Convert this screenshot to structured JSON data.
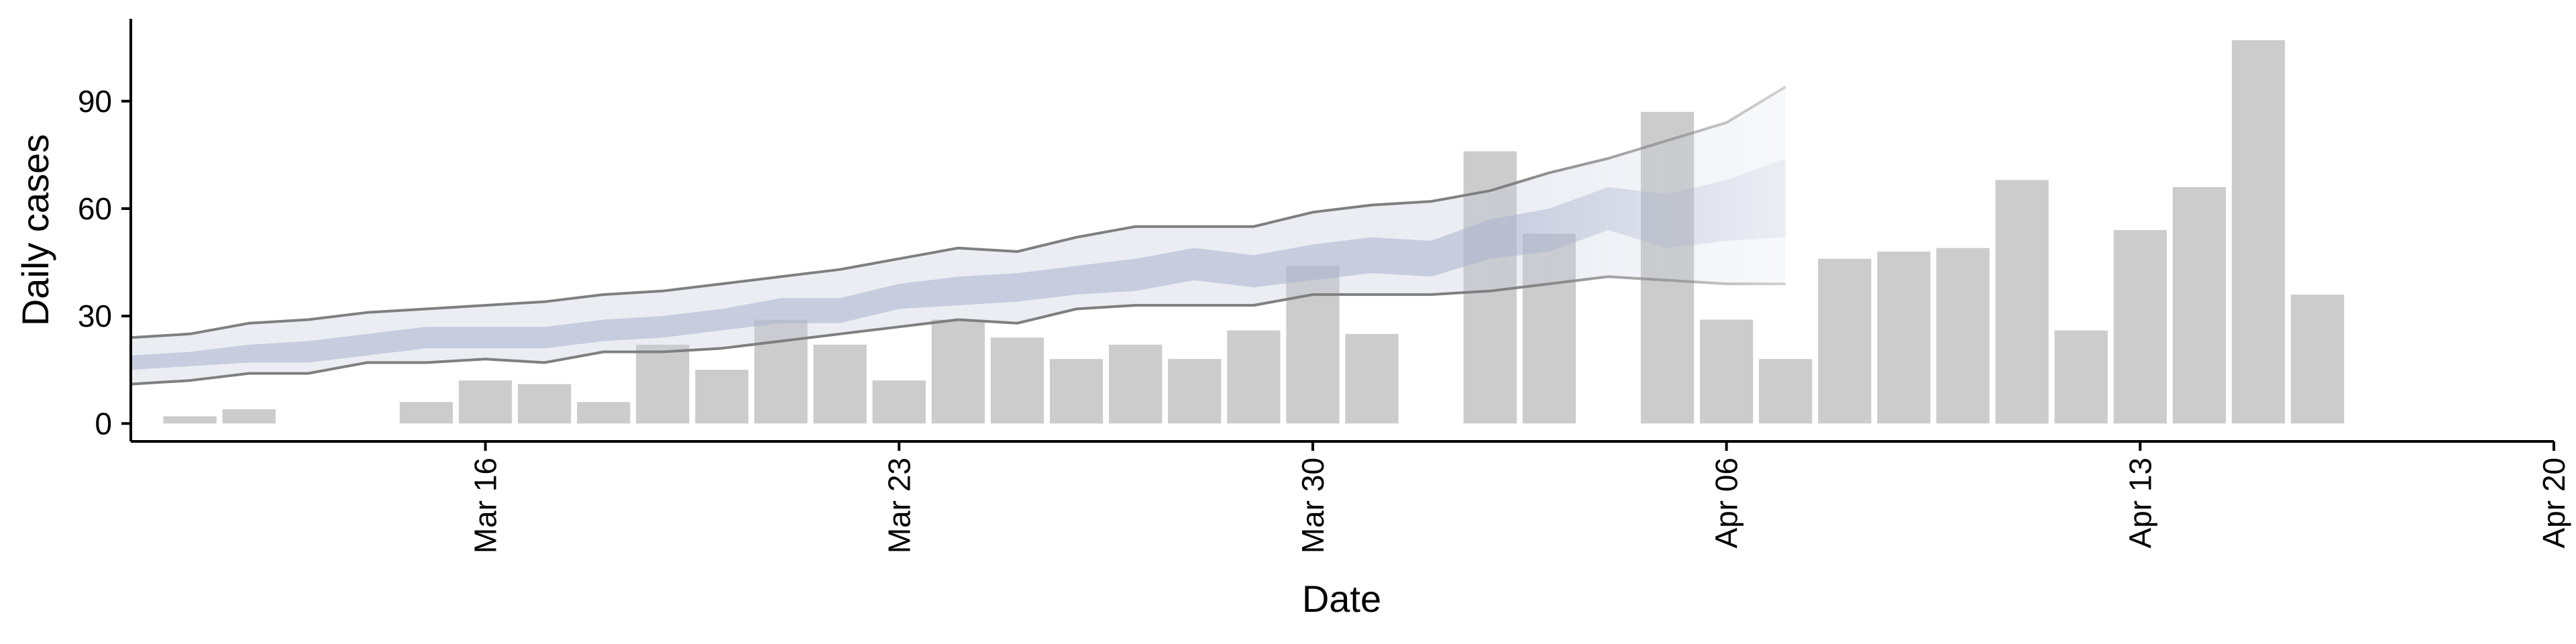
{
  "chart_data": {
    "type": "bar",
    "xlabel": "Date",
    "ylabel": "Daily cases",
    "xlim": [
      "2020-03-10",
      "2020-04-20"
    ],
    "ylim": [
      -5,
      113
    ],
    "grid": false,
    "legend": "none",
    "x_ticks": [
      {
        "date": "2020-03-16",
        "label": "Mar 16"
      },
      {
        "date": "2020-03-23",
        "label": "Mar 23"
      },
      {
        "date": "2020-03-30",
        "label": "Mar 30"
      },
      {
        "date": "2020-04-06",
        "label": "Apr 06"
      },
      {
        "date": "2020-04-13",
        "label": "Apr 13"
      },
      {
        "date": "2020-04-20",
        "label": "Apr 20"
      }
    ],
    "y_ticks": [
      {
        "value": 0,
        "label": "0"
      },
      {
        "value": 30,
        "label": "30"
      },
      {
        "value": 60,
        "label": "60"
      },
      {
        "value": 90,
        "label": "90"
      }
    ],
    "bars": {
      "color": "#cccccc",
      "data": [
        {
          "date": "2020-03-11",
          "value": 2
        },
        {
          "date": "2020-03-12",
          "value": 4
        },
        {
          "date": "2020-03-15",
          "value": 6
        },
        {
          "date": "2020-03-16",
          "value": 12
        },
        {
          "date": "2020-03-17",
          "value": 11
        },
        {
          "date": "2020-03-18",
          "value": 6
        },
        {
          "date": "2020-03-19",
          "value": 22
        },
        {
          "date": "2020-03-20",
          "value": 15
        },
        {
          "date": "2020-03-21",
          "value": 29
        },
        {
          "date": "2020-03-22",
          "value": 22
        },
        {
          "date": "2020-03-23",
          "value": 12
        },
        {
          "date": "2020-03-24",
          "value": 29
        },
        {
          "date": "2020-03-25",
          "value": 24
        },
        {
          "date": "2020-03-26",
          "value": 18
        },
        {
          "date": "2020-03-27",
          "value": 22
        },
        {
          "date": "2020-03-28",
          "value": 18
        },
        {
          "date": "2020-03-29",
          "value": 26
        },
        {
          "date": "2020-03-30",
          "value": 44
        },
        {
          "date": "2020-03-31",
          "value": 25
        },
        {
          "date": "2020-04-02",
          "value": 76
        },
        {
          "date": "2020-04-03",
          "value": 53
        },
        {
          "date": "2020-04-05",
          "value": 87
        },
        {
          "date": "2020-04-06",
          "value": 29
        },
        {
          "date": "2020-04-07",
          "value": 18
        },
        {
          "date": "2020-04-08",
          "value": 46
        },
        {
          "date": "2020-04-09",
          "value": 48
        },
        {
          "date": "2020-04-10",
          "value": 49
        },
        {
          "date": "2020-04-11",
          "value": 68
        },
        {
          "date": "2020-04-12",
          "value": 26
        },
        {
          "date": "2020-04-13",
          "value": 54
        },
        {
          "date": "2020-04-14",
          "value": 66
        },
        {
          "date": "2020-04-15",
          "value": 107
        },
        {
          "date": "2020-04-16",
          "value": 36
        }
      ]
    },
    "ribbons": [
      {
        "color": "#c5cbde",
        "opacity": 0.35,
        "lower": [
          [
            "2020-03-10",
            11
          ],
          [
            "2020-03-11",
            12
          ],
          [
            "2020-03-12",
            14
          ],
          [
            "2020-03-13",
            14
          ],
          [
            "2020-03-14",
            17
          ],
          [
            "2020-03-15",
            17
          ],
          [
            "2020-03-16",
            18
          ],
          [
            "2020-03-17",
            17
          ],
          [
            "2020-03-18",
            20
          ],
          [
            "2020-03-19",
            20
          ],
          [
            "2020-03-20",
            21
          ],
          [
            "2020-03-21",
            23
          ],
          [
            "2020-03-22",
            25
          ],
          [
            "2020-03-23",
            27
          ],
          [
            "2020-03-24",
            29
          ],
          [
            "2020-03-25",
            28
          ],
          [
            "2020-03-26",
            32
          ],
          [
            "2020-03-27",
            33
          ],
          [
            "2020-03-28",
            33
          ],
          [
            "2020-03-29",
            33
          ],
          [
            "2020-03-30",
            36
          ],
          [
            "2020-03-31",
            36
          ],
          [
            "2020-04-01",
            36
          ],
          [
            "2020-04-02",
            37
          ],
          [
            "2020-04-03",
            39
          ],
          [
            "2020-04-04",
            41
          ],
          [
            "2020-04-05",
            40
          ],
          [
            "2020-04-06",
            39
          ],
          [
            "2020-04-07",
            39
          ]
        ],
        "upper": [
          [
            "2020-03-10",
            24
          ],
          [
            "2020-03-11",
            25
          ],
          [
            "2020-03-12",
            28
          ],
          [
            "2020-03-13",
            29
          ],
          [
            "2020-03-14",
            31
          ],
          [
            "2020-03-15",
            32
          ],
          [
            "2020-03-16",
            33
          ],
          [
            "2020-03-17",
            34
          ],
          [
            "2020-03-18",
            36
          ],
          [
            "2020-03-19",
            37
          ],
          [
            "2020-03-20",
            39
          ],
          [
            "2020-03-21",
            41
          ],
          [
            "2020-03-22",
            43
          ],
          [
            "2020-03-23",
            46
          ],
          [
            "2020-03-24",
            49
          ],
          [
            "2020-03-25",
            48
          ],
          [
            "2020-03-26",
            52
          ],
          [
            "2020-03-27",
            55
          ],
          [
            "2020-03-28",
            55
          ],
          [
            "2020-03-29",
            55
          ],
          [
            "2020-03-30",
            59
          ],
          [
            "2020-03-31",
            61
          ],
          [
            "2020-04-01",
            62
          ],
          [
            "2020-04-02",
            65
          ],
          [
            "2020-04-03",
            70
          ],
          [
            "2020-04-04",
            74
          ],
          [
            "2020-04-05",
            79
          ],
          [
            "2020-04-06",
            84
          ],
          [
            "2020-04-07",
            94
          ]
        ]
      },
      {
        "color": "#aab3cf",
        "opacity": 0.55,
        "lower": [
          [
            "2020-03-10",
            15
          ],
          [
            "2020-03-11",
            16
          ],
          [
            "2020-03-12",
            17
          ],
          [
            "2020-03-13",
            17
          ],
          [
            "2020-03-14",
            19
          ],
          [
            "2020-03-15",
            21
          ],
          [
            "2020-03-16",
            21
          ],
          [
            "2020-03-17",
            21
          ],
          [
            "2020-03-18",
            23
          ],
          [
            "2020-03-19",
            24
          ],
          [
            "2020-03-20",
            26
          ],
          [
            "2020-03-21",
            28
          ],
          [
            "2020-03-22",
            28
          ],
          [
            "2020-03-23",
            32
          ],
          [
            "2020-03-24",
            33
          ],
          [
            "2020-03-25",
            34
          ],
          [
            "2020-03-26",
            36
          ],
          [
            "2020-03-27",
            37
          ],
          [
            "2020-03-28",
            40
          ],
          [
            "2020-03-29",
            38
          ],
          [
            "2020-03-30",
            40
          ],
          [
            "2020-03-31",
            42
          ],
          [
            "2020-04-01",
            41
          ],
          [
            "2020-04-02",
            46
          ],
          [
            "2020-04-03",
            48
          ],
          [
            "2020-04-04",
            54
          ],
          [
            "2020-04-05",
            49
          ],
          [
            "2020-04-06",
            51
          ],
          [
            "2020-04-07",
            52
          ]
        ],
        "upper": [
          [
            "2020-03-10",
            19
          ],
          [
            "2020-03-11",
            20
          ],
          [
            "2020-03-12",
            22
          ],
          [
            "2020-03-13",
            23
          ],
          [
            "2020-03-14",
            25
          ],
          [
            "2020-03-15",
            27
          ],
          [
            "2020-03-16",
            27
          ],
          [
            "2020-03-17",
            27
          ],
          [
            "2020-03-18",
            29
          ],
          [
            "2020-03-19",
            30
          ],
          [
            "2020-03-20",
            32
          ],
          [
            "2020-03-21",
            35
          ],
          [
            "2020-03-22",
            35
          ],
          [
            "2020-03-23",
            39
          ],
          [
            "2020-03-24",
            41
          ],
          [
            "2020-03-25",
            42
          ],
          [
            "2020-03-26",
            44
          ],
          [
            "2020-03-27",
            46
          ],
          [
            "2020-03-28",
            49
          ],
          [
            "2020-03-29",
            47
          ],
          [
            "2020-03-30",
            50
          ],
          [
            "2020-03-31",
            52
          ],
          [
            "2020-04-01",
            51
          ],
          [
            "2020-04-02",
            57
          ],
          [
            "2020-04-03",
            60
          ],
          [
            "2020-04-04",
            66
          ],
          [
            "2020-04-05",
            64
          ],
          [
            "2020-04-06",
            68
          ],
          [
            "2020-04-07",
            74
          ]
        ]
      }
    ],
    "bound_lines": {
      "color": "#7f7f7f",
      "lines": [
        "lower",
        "upper"
      ]
    },
    "fade": {
      "from": "2020-04-02",
      "to": "2020-04-07"
    }
  }
}
